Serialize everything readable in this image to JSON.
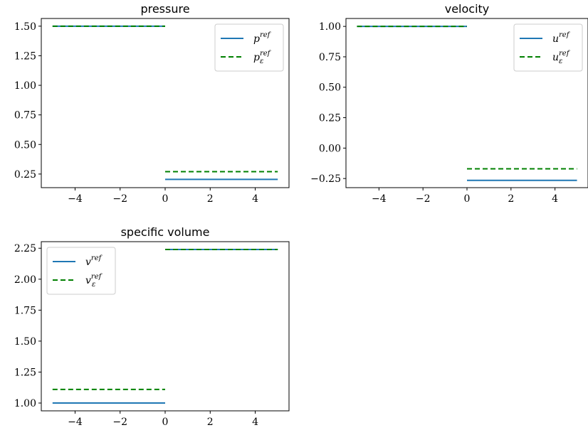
{
  "chart_data": [
    {
      "type": "line",
      "title": "pressure",
      "xlim": [
        -5.5,
        5.5
      ],
      "ylim": [
        0.135,
        1.565
      ],
      "xticks": [
        -4,
        -2,
        0,
        2,
        4
      ],
      "xtick_labels": [
        "−4",
        "−2",
        "0",
        "2",
        "4"
      ],
      "yticks": [
        0.25,
        0.5,
        0.75,
        1.0,
        1.25,
        1.5
      ],
      "ytick_labels": [
        "0.25",
        "0.50",
        "0.75",
        "1.00",
        "1.25",
        "1.50"
      ],
      "legend_loc": "upper right",
      "series": [
        {
          "base": "p",
          "sub": "",
          "sup": "ref",
          "color": "#1f77b4",
          "dash": "solid",
          "segments": [
            {
              "x": [
                -5,
                0
              ],
              "y": [
                1.5,
                1.5
              ]
            },
            {
              "x": [
                0,
                5
              ],
              "y": [
                0.205,
                0.205
              ]
            }
          ]
        },
        {
          "base": "p",
          "sub": "ε",
          "sup": "ref",
          "color": "#008000",
          "dash": "dashed",
          "segments": [
            {
              "x": [
                -5,
                0
              ],
              "y": [
                1.5,
                1.5
              ]
            },
            {
              "x": [
                0,
                5
              ],
              "y": [
                0.27,
                0.27
              ]
            }
          ]
        }
      ]
    },
    {
      "type": "line",
      "title": "velocity",
      "xlim": [
        -5.5,
        5.5
      ],
      "ylim": [
        -0.325,
        1.065
      ],
      "xticks": [
        -4,
        -2,
        0,
        2,
        4
      ],
      "xtick_labels": [
        "−4",
        "−2",
        "0",
        "2",
        "4"
      ],
      "yticks": [
        -0.25,
        0.0,
        0.25,
        0.5,
        0.75,
        1.0
      ],
      "ytick_labels": [
        "−0.25",
        "0.00",
        "0.25",
        "0.50",
        "0.75",
        "1.00"
      ],
      "legend_loc": "upper right",
      "series": [
        {
          "base": "u",
          "sub": "",
          "sup": "ref",
          "color": "#1f77b4",
          "dash": "solid",
          "segments": [
            {
              "x": [
                -5,
                0
              ],
              "y": [
                1.0,
                1.0
              ]
            },
            {
              "x": [
                0,
                5
              ],
              "y": [
                -0.265,
                -0.265
              ]
            }
          ]
        },
        {
          "base": "u",
          "sub": "ε",
          "sup": "ref",
          "color": "#008000",
          "dash": "dashed",
          "segments": [
            {
              "x": [
                -5,
                0
              ],
              "y": [
                1.0,
                1.0
              ]
            },
            {
              "x": [
                0,
                5
              ],
              "y": [
                -0.17,
                -0.17
              ]
            }
          ]
        }
      ]
    },
    {
      "type": "line",
      "title": "specific volume",
      "xlim": [
        -5.5,
        5.5
      ],
      "ylim": [
        0.937,
        2.303
      ],
      "xticks": [
        -4,
        -2,
        0,
        2,
        4
      ],
      "xtick_labels": [
        "−4",
        "−2",
        "0",
        "2",
        "4"
      ],
      "yticks": [
        1.0,
        1.25,
        1.5,
        1.75,
        2.0,
        2.25
      ],
      "ytick_labels": [
        "1.00",
        "1.25",
        "1.50",
        "1.75",
        "2.00",
        "2.25"
      ],
      "legend_loc": "upper left",
      "series": [
        {
          "base": "v",
          "sub": "",
          "sup": "ref",
          "color": "#1f77b4",
          "dash": "solid",
          "segments": [
            {
              "x": [
                -5,
                0
              ],
              "y": [
                1.0,
                1.0
              ]
            },
            {
              "x": [
                0,
                5
              ],
              "y": [
                2.24,
                2.24
              ]
            }
          ]
        },
        {
          "base": "v",
          "sub": "ε",
          "sup": "ref",
          "color": "#008000",
          "dash": "dashed",
          "segments": [
            {
              "x": [
                -5,
                0
              ],
              "y": [
                1.11,
                1.11
              ]
            },
            {
              "x": [
                0,
                5
              ],
              "y": [
                2.24,
                2.24
              ]
            }
          ]
        }
      ]
    }
  ]
}
